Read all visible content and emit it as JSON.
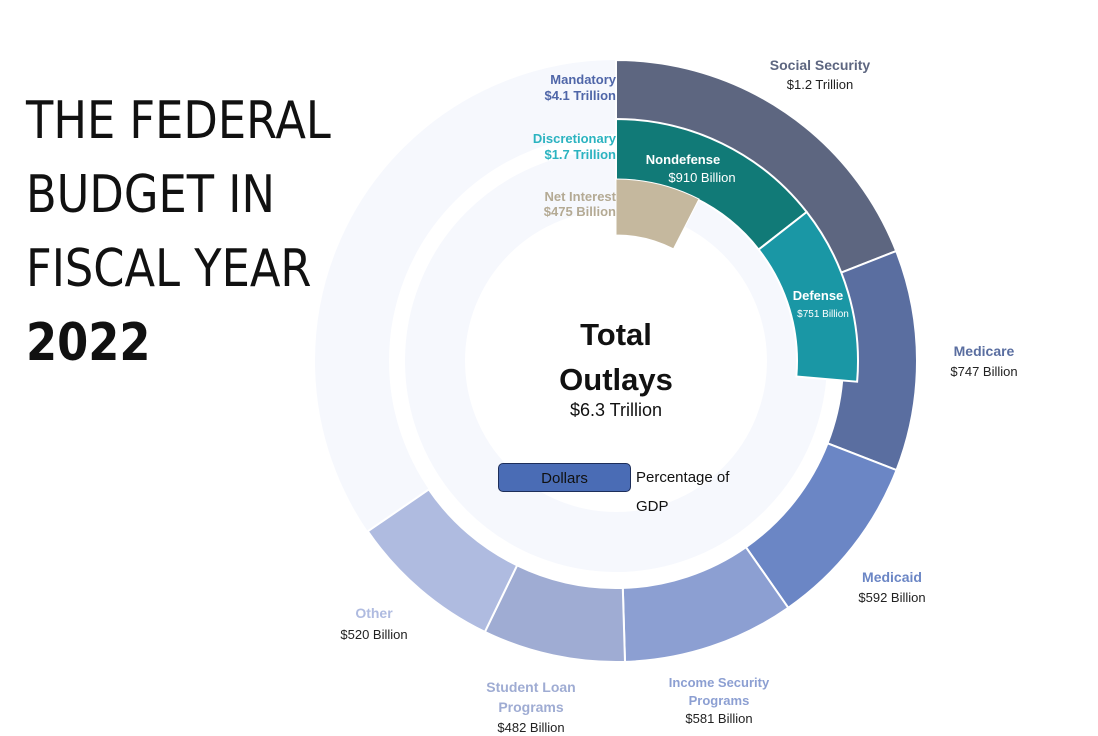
{
  "title": {
    "line1": "THE FEDERAL",
    "line2": "BUDGET IN",
    "line3": "FISCAL YEAR",
    "year": "2022"
  },
  "center": {
    "title_line1": "Total",
    "title_line2": "Outlays",
    "value": "$6.3 Trillion"
  },
  "toggle": {
    "dollars": "Dollars",
    "gdp": "Percentage of GDP",
    "selected": "Dollars"
  },
  "chart_data": {
    "type": "pie",
    "total": 6.3,
    "unit": "$ Billion",
    "inner_ring": [
      {
        "name": "Mandatory",
        "label": "$4.1 Trillion",
        "value": 4100,
        "color": "#f6f8fd",
        "label_color": "#4f66a8"
      },
      {
        "name": "Discretionary",
        "label": "$1.7 Trillion",
        "value": 1700,
        "color": "#f6f8fd",
        "label_color": "#2bb3c0"
      },
      {
        "name": "Net Interest",
        "label": "$475 Billion",
        "value": 475,
        "color": "#c5b89e",
        "label_color": "#b4aa94"
      }
    ],
    "outer_ring": [
      {
        "name": "Social Security",
        "label": "$1.2 Trillion",
        "value": 1200,
        "color": "#5d6680"
      },
      {
        "name": "Medicare",
        "label": "$747 Billion",
        "value": 747,
        "color": "#5a6ea0"
      },
      {
        "name": "Medicaid",
        "label": "$592 Billion",
        "value": 592,
        "color": "#6b86c5"
      },
      {
        "name": "Income Security Programs",
        "label": "$581 Billion",
        "value": 581,
        "color": "#8c9fd2"
      },
      {
        "name": "Student Loan Programs",
        "label": "$482 Billion",
        "value": 482,
        "color": "#9facd3"
      },
      {
        "name": "Other",
        "label": "$520 Billion",
        "value": 520,
        "color": "#afbbe0"
      }
    ],
    "discretionary_ring": [
      {
        "name": "Nondefense",
        "label": "$910 Billion",
        "value": 910,
        "color": "#117a77"
      },
      {
        "name": "Defense",
        "label": "$751 Billion",
        "value": 751,
        "color": "#1a97a5"
      }
    ]
  }
}
